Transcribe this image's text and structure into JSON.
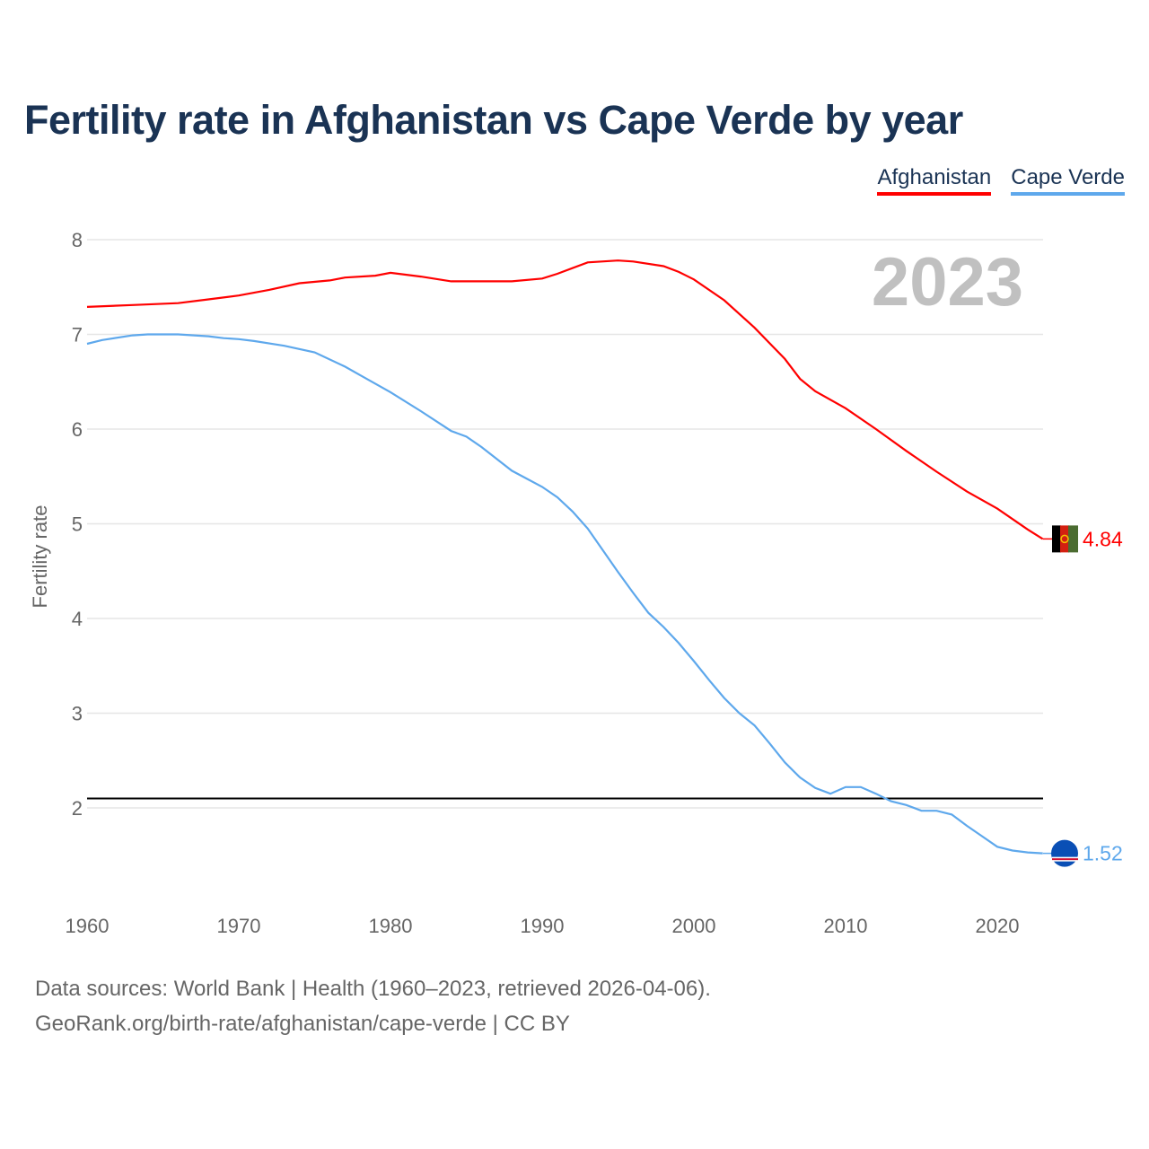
{
  "title": "Fertility rate in Afghanistan vs Cape Verde by year",
  "sources": [
    "Data sources: World Bank | Health (1960–2023, retrieved 2026-04-06).",
    "GeoRank.org/birth-rate/afghanistan/cape-verde | CC BY"
  ],
  "chart_data": {
    "type": "line",
    "title": "Fertility rate in Afghanistan vs Cape Verde by year",
    "xlabel": "",
    "ylabel": "Fertility rate",
    "xlim": [
      1960,
      2023
    ],
    "ylim": [
      1,
      8
    ],
    "yticks": [
      2,
      3,
      4,
      5,
      6,
      7,
      8
    ],
    "xticks": [
      1960,
      1970,
      1980,
      1990,
      2000,
      2010,
      2020
    ],
    "year_label": "2023",
    "reference_line": 2.1,
    "legend_position": "top-right",
    "series": [
      {
        "name": "Afghanistan",
        "color": "#ff0000",
        "end_label": "4.84",
        "points": [
          [
            1960,
            7.29
          ],
          [
            1963,
            7.31
          ],
          [
            1966,
            7.33
          ],
          [
            1968,
            7.37
          ],
          [
            1970,
            7.41
          ],
          [
            1972,
            7.47
          ],
          [
            1974,
            7.54
          ],
          [
            1976,
            7.57
          ],
          [
            1977,
            7.6
          ],
          [
            1979,
            7.62
          ],
          [
            1980,
            7.65
          ],
          [
            1982,
            7.61
          ],
          [
            1984,
            7.56
          ],
          [
            1988,
            7.56
          ],
          [
            1990,
            7.59
          ],
          [
            1991,
            7.64
          ],
          [
            1993,
            7.76
          ],
          [
            1995,
            7.78
          ],
          [
            1996,
            7.77
          ],
          [
            1998,
            7.72
          ],
          [
            1999,
            7.66
          ],
          [
            2000,
            7.58
          ],
          [
            2002,
            7.36
          ],
          [
            2004,
            7.07
          ],
          [
            2006,
            6.74
          ],
          [
            2007,
            6.53
          ],
          [
            2008,
            6.4
          ],
          [
            2010,
            6.22
          ],
          [
            2012,
            6.0
          ],
          [
            2014,
            5.77
          ],
          [
            2016,
            5.55
          ],
          [
            2018,
            5.34
          ],
          [
            2020,
            5.16
          ],
          [
            2022,
            4.94
          ],
          [
            2023,
            4.84
          ]
        ]
      },
      {
        "name": "Cape Verde",
        "color": "#5ea8ec",
        "end_label": "1.52",
        "points": [
          [
            1960,
            6.9
          ],
          [
            1961,
            6.94
          ],
          [
            1963,
            6.99
          ],
          [
            1964,
            7.0
          ],
          [
            1966,
            7.0
          ],
          [
            1968,
            6.98
          ],
          [
            1969,
            6.96
          ],
          [
            1970,
            6.95
          ],
          [
            1971,
            6.93
          ],
          [
            1973,
            6.88
          ],
          [
            1975,
            6.81
          ],
          [
            1977,
            6.66
          ],
          [
            1978,
            6.57
          ],
          [
            1980,
            6.39
          ],
          [
            1982,
            6.19
          ],
          [
            1984,
            5.98
          ],
          [
            1985,
            5.92
          ],
          [
            1986,
            5.81
          ],
          [
            1988,
            5.56
          ],
          [
            1990,
            5.39
          ],
          [
            1991,
            5.28
          ],
          [
            1992,
            5.13
          ],
          [
            1993,
            4.95
          ],
          [
            1994,
            4.72
          ],
          [
            1995,
            4.49
          ],
          [
            1996,
            4.27
          ],
          [
            1997,
            4.06
          ],
          [
            1998,
            3.91
          ],
          [
            1999,
            3.74
          ],
          [
            2000,
            3.55
          ],
          [
            2001,
            3.35
          ],
          [
            2002,
            3.16
          ],
          [
            2003,
            3.0
          ],
          [
            2004,
            2.87
          ],
          [
            2005,
            2.68
          ],
          [
            2006,
            2.48
          ],
          [
            2007,
            2.32
          ],
          [
            2008,
            2.21
          ],
          [
            2009,
            2.15
          ],
          [
            2010,
            2.22
          ],
          [
            2011,
            2.22
          ],
          [
            2012,
            2.15
          ],
          [
            2013,
            2.07
          ],
          [
            2014,
            2.03
          ],
          [
            2015,
            1.97
          ],
          [
            2016,
            1.97
          ],
          [
            2017,
            1.93
          ],
          [
            2018,
            1.81
          ],
          [
            2019,
            1.7
          ],
          [
            2020,
            1.59
          ],
          [
            2021,
            1.55
          ],
          [
            2022,
            1.53
          ],
          [
            2023,
            1.52
          ]
        ]
      }
    ]
  }
}
